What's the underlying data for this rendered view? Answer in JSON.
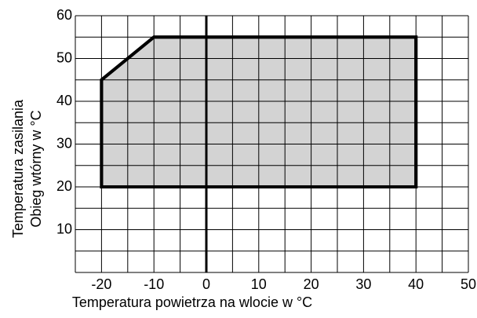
{
  "chart_data": {
    "type": "area",
    "xlabel": "Temperatura powietrza na wlocie w °C",
    "ylabel": [
      "Temperatura zasilania",
      "Obieg wtórny w °C"
    ],
    "x": [
      -20,
      -20,
      -10,
      40,
      40
    ],
    "y": [
      20,
      45,
      55,
      55,
      20
    ],
    "color": "#d3d3d3",
    "xlim": [
      -25,
      50
    ],
    "ylim": [
      0,
      60
    ],
    "xticks": [
      -20,
      -10,
      0,
      10,
      20,
      30,
      40,
      50
    ],
    "yticks": [
      10,
      20,
      30,
      40,
      50,
      60
    ],
    "xgrid": [
      -25,
      -20,
      -15,
      -10,
      -5,
      0,
      5,
      10,
      15,
      20,
      25,
      30,
      35,
      40,
      45,
      50
    ],
    "ygrid": [
      0,
      5,
      10,
      15,
      20,
      25,
      30,
      35,
      40,
      45,
      50,
      55,
      60
    ],
    "grid": true
  }
}
